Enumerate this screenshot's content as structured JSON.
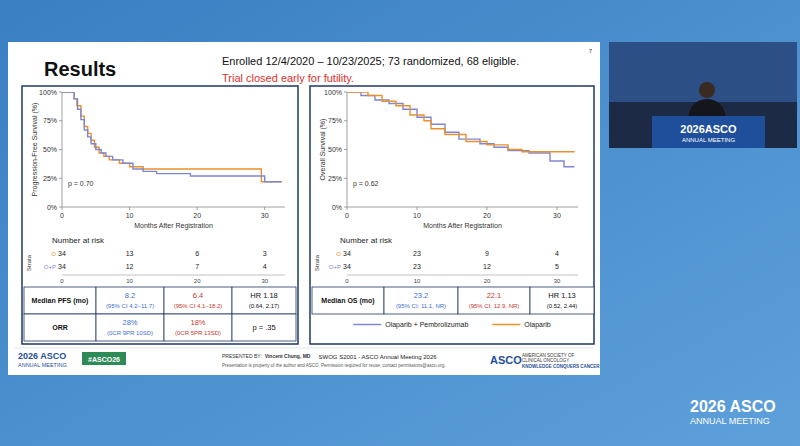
{
  "slide": {
    "title": "Results",
    "number": "7",
    "header": "Enrolled 12/4/2020 – 10/23/2025; 73 randomized, 68 eligible.",
    "note": "Trial closed early for futility.",
    "note_color": "#e0302a"
  },
  "chart_data": [
    {
      "type": "line",
      "line_style": "step",
      "grid": false,
      "ylabel": "Progression-Free Survival (%)",
      "xlabel": "Months After Registration",
      "xlim": [
        0,
        33
      ],
      "ylim": [
        0,
        100
      ],
      "xticks": [
        0,
        10,
        20,
        30
      ],
      "yticks": [
        {
          "value": 0,
          "label": "0%"
        },
        {
          "value": 25,
          "label": "25%"
        },
        {
          "value": 50,
          "label": "50%"
        },
        {
          "value": 75,
          "label": "75%"
        },
        {
          "value": 100,
          "label": "100%"
        }
      ],
      "p_value": "p = 0.70",
      "series": [
        {
          "color": "#e8912d",
          "x": [
            0,
            1.8,
            2.2,
            2.8,
            3.3,
            3.8,
            4.3,
            4.8,
            5.5,
            6.2,
            7,
            8.5,
            10,
            12,
            29.5,
            32.5
          ],
          "values": [
            100,
            94,
            88,
            79,
            70,
            64,
            58,
            52,
            47,
            44,
            41,
            38,
            35,
            33,
            22,
            22
          ]
        },
        {
          "color": "#7f86d4",
          "x": [
            0,
            1.8,
            2.3,
            2.8,
            3.3,
            3.8,
            4.3,
            5,
            5.8,
            6.5,
            7.5,
            9,
            10.5,
            12,
            14,
            19,
            30,
            32.5
          ],
          "values": [
            100,
            94,
            85,
            76,
            67,
            61,
            55,
            50,
            47,
            44,
            41,
            38,
            33,
            31,
            29,
            27,
            22,
            22
          ]
        }
      ],
      "at_risk": {
        "title": "Number at risk",
        "strata_title": "Strata",
        "rows": [
          {
            "label": "O",
            "color": "#e8912d",
            "values": [
              34,
              13,
              6,
              3
            ]
          },
          {
            "label": "O+P",
            "color": "#7f86d4",
            "values": [
              34,
              12,
              7,
              4
            ]
          }
        ]
      },
      "summary": [
        {
          "label": "Median PFS (mo)",
          "cells": [
            {
              "text": "8.2",
              "sub": "(95% CI 4.2–11.7)",
              "color": "#3c6fd1"
            },
            {
              "text": "6.4",
              "sub": "(95% CI 4.1–18.2)",
              "color": "#c8372d"
            },
            {
              "text": "HR 1.18",
              "sub": "(0.64, 2.17)"
            }
          ]
        },
        {
          "label": "ORR",
          "cells": [
            {
              "text": "28%",
              "sub": "(0CR 9PR 10SD)",
              "color": "#3c6fd1"
            },
            {
              "text": "18%",
              "sub": "(0CR 5PR 13SD)",
              "color": "#c8372d"
            },
            {
              "text": "p = .35"
            }
          ]
        }
      ]
    },
    {
      "type": "line",
      "line_style": "step",
      "grid": false,
      "legend": "bottom",
      "ylabel": "Overall Survival (%)",
      "xlabel": "Months After Registration",
      "xlim": [
        0,
        33
      ],
      "ylim": [
        0,
        100
      ],
      "xticks": [
        0,
        10,
        20,
        30
      ],
      "yticks": [
        {
          "value": 0,
          "label": "0%"
        },
        {
          "value": 25,
          "label": "25%"
        },
        {
          "value": 50,
          "label": "50%"
        },
        {
          "value": 75,
          "label": "75%"
        },
        {
          "value": 100,
          "label": "100%"
        }
      ],
      "p_value": "p = 0.62",
      "series": [
        {
          "name": "Olaparib + Pembrolizumab",
          "color": "#7f86d4",
          "x": [
            0,
            2,
            4,
            6,
            8,
            10,
            12,
            14,
            16,
            19,
            21,
            23,
            26,
            29,
            31,
            32.5
          ],
          "values": [
            100,
            97,
            93,
            90,
            85,
            78,
            72,
            65,
            59,
            55,
            52,
            49,
            47,
            40,
            35,
            35
          ]
        },
        {
          "name": "Olaparib",
          "color": "#e8912d",
          "x": [
            0,
            3,
            5,
            7,
            9,
            11,
            12,
            14,
            17,
            20,
            23,
            25,
            32.5
          ],
          "values": [
            100,
            97,
            92,
            88,
            80,
            75,
            68,
            63,
            57,
            54,
            50,
            48,
            48
          ]
        }
      ],
      "at_risk": {
        "title": "Number at risk",
        "strata_title": "Strata",
        "rows": [
          {
            "label": "O",
            "color": "#e8912d",
            "values": [
              34,
              23,
              9,
              4
            ]
          },
          {
            "label": "O+P",
            "color": "#7f86d4",
            "values": [
              34,
              23,
              12,
              5
            ]
          }
        ]
      },
      "summary": [
        {
          "label": "Median OS (mo)",
          "cells": [
            {
              "text": "23.2",
              "sub": "(95% CI: 11.1, NR)",
              "color": "#3c6fd1"
            },
            {
              "text": "22.1",
              "sub": "(95% CI: 12.9, NR)",
              "color": "#c8372d"
            },
            {
              "text": "HR 1.13",
              "sub": "(0.52, 2.44)"
            }
          ]
        }
      ]
    }
  ],
  "footer": {
    "logo_line1": "2026 ASCO",
    "logo_line2": "ANNUAL MEETING",
    "hashtag": "#ASCO26",
    "presented_by": "PRESENTED BY:",
    "presenter": "Vincent Chung, MD",
    "meeting": "SWOG S2001 - ASCO Annual Meeting 2026",
    "disclaimer": "Presentation is property of the author and ASCO. Permission required for reuse; contact permissions@asco.org.",
    "org": "ASCO",
    "org_line1": "AMERICAN SOCIETY OF",
    "org_line2": "CLINICAL ONCOLOGY",
    "org_line3": "KNOWLEDGE CONQUERS CANCER"
  },
  "video": {
    "podium_line1": "2026ASCO",
    "podium_line2": "ANNUAL MEETING"
  },
  "watermark": {
    "line1": "2026 ASCO",
    "line2": "ANNUAL MEETING"
  }
}
